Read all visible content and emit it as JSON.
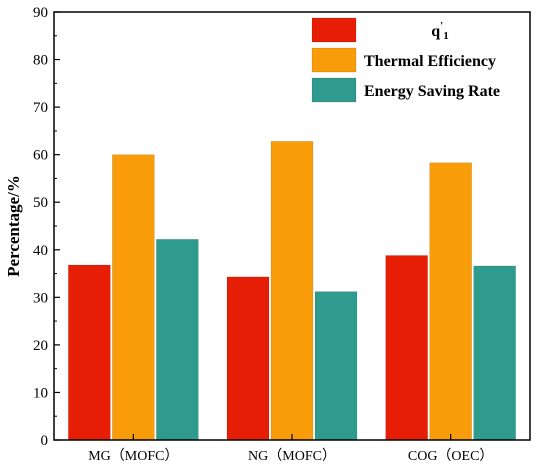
{
  "chart_data": {
    "type": "bar",
    "title": "",
    "xlabel": "",
    "ylabel": "Percentage/%",
    "ylim": [
      0,
      90
    ],
    "yticks": [
      0,
      10,
      20,
      30,
      40,
      50,
      60,
      70,
      80,
      90
    ],
    "categories": [
      "MG（MOFC）",
      "NG（MOFC）",
      "COG（OEC）"
    ],
    "series": [
      {
        "name": "q'1",
        "color": "#e61e05",
        "values": [
          36.8,
          34.3,
          38.8
        ]
      },
      {
        "name": "Thermal Efficiency",
        "color": "#f99c0a",
        "values": [
          60.0,
          62.8,
          58.3
        ]
      },
      {
        "name": "Energy Saving Rate",
        "color": "#2f9a8e",
        "values": [
          42.2,
          31.2,
          36.6
        ]
      }
    ],
    "grid": false,
    "legend_position": "top-right"
  }
}
